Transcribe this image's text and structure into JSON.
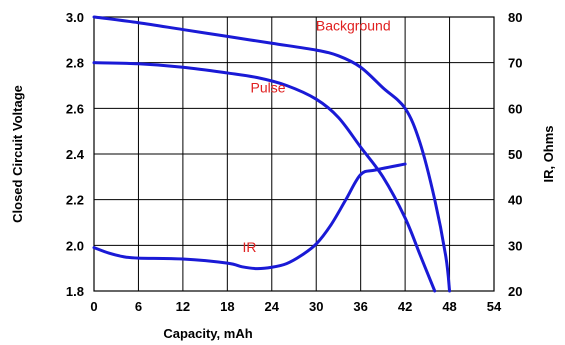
{
  "chart_data": {
    "type": "line",
    "xlabel": "Capacity, mAh",
    "ylabel": "Closed Circuit Voltage",
    "y2label": "IR, Ohms",
    "xlim": [
      0,
      54
    ],
    "ylim": [
      1.8,
      3.0
    ],
    "y2lim": [
      20,
      80
    ],
    "x_ticks": [
      0,
      6,
      12,
      18,
      24,
      30,
      36,
      42,
      48,
      54
    ],
    "y_ticks": [
      "1.8",
      "2.0",
      "2.2",
      "2.4",
      "2.6",
      "2.8",
      "3.0"
    ],
    "y2_ticks": [
      "20",
      "30",
      "40",
      "50",
      "60",
      "70",
      "80"
    ],
    "grid": true,
    "series": [
      {
        "name": "Background",
        "axis": "left",
        "color": "#1a1ad6",
        "x": [
          0,
          6,
          12,
          18,
          24,
          30,
          33,
          36,
          39,
          42,
          44,
          46,
          47.5,
          48
        ],
        "y": [
          3.0,
          2.975,
          2.945,
          2.915,
          2.885,
          2.855,
          2.83,
          2.78,
          2.69,
          2.6,
          2.45,
          2.2,
          1.95,
          1.8
        ]
      },
      {
        "name": "Pulse",
        "axis": "left",
        "color": "#1a1ad6",
        "x": [
          0,
          6,
          12,
          18,
          22,
          26,
          30,
          33,
          36,
          39,
          42,
          44,
          46
        ],
        "y": [
          2.8,
          2.795,
          2.78,
          2.755,
          2.735,
          2.7,
          2.64,
          2.56,
          2.43,
          2.3,
          2.12,
          1.96,
          1.8
        ]
      },
      {
        "name": "IR",
        "axis": "right",
        "color": "#1a1ad6",
        "x": [
          0,
          2,
          4,
          6,
          12,
          18,
          20,
          22,
          24,
          26,
          28,
          30,
          32,
          34,
          36,
          38,
          42
        ],
        "y": [
          29.5,
          28.3,
          27.5,
          27.2,
          27,
          26.1,
          25.3,
          24.9,
          25.2,
          26,
          27.8,
          30.3,
          34.5,
          40,
          45.5,
          46.5,
          47.8
        ]
      }
    ],
    "label_positions": {
      "Background": {
        "x": 35,
        "y": 2.94
      },
      "Pulse": {
        "x": 23.5,
        "y": 2.67
      },
      "IR": {
        "x": 21,
        "y": 28.5
      }
    }
  }
}
